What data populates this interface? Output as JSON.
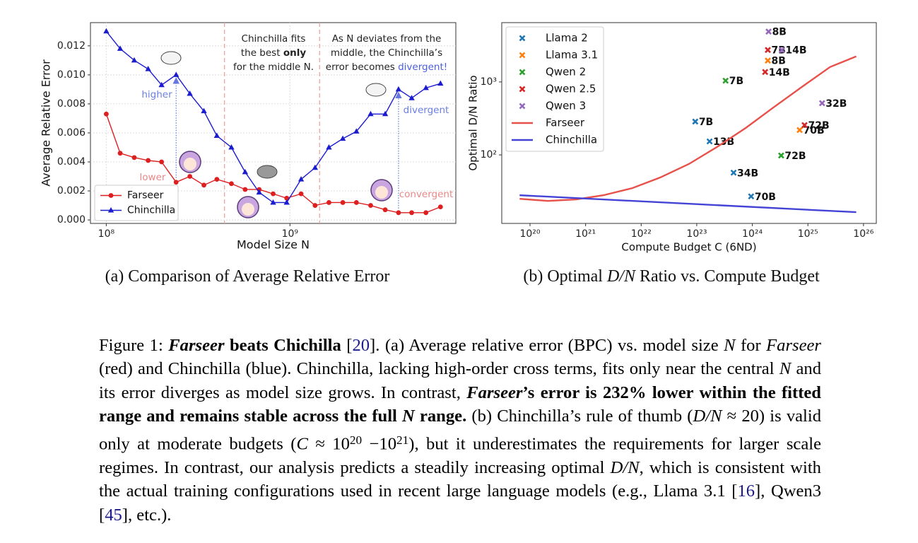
{
  "chart_data": [
    {
      "type": "line",
      "x_label": "Model Size N",
      "y_label": "Average Relative Error",
      "subcaption": [
        {
          "text": "(a) Comparison of Average Relative Error",
          "style": "n"
        }
      ],
      "x": [
        100000000,
        119000000,
        142000000,
        169000000,
        200000000,
        240000000,
        285000000,
        340000000,
        400000000,
        480000000,
        570000000,
        680000000,
        810000000,
        960000000,
        1150000000,
        1370000000,
        1630000000,
        1940000000,
        2300000000,
        2750000000,
        3300000000,
        3900000000,
        4600000000,
        5500000000,
        6600000000
      ],
      "series": [
        {
          "name": "Farseer",
          "color": "#dd1f1f",
          "marker": "o",
          "values": [
            0.0073,
            0.0046,
            0.0043,
            0.0041,
            0.004,
            0.0026,
            0.003,
            0.0024,
            0.0028,
            0.0025,
            0.0021,
            0.0021,
            0.0018,
            0.0015,
            0.0018,
            0.001,
            0.0012,
            0.0012,
            0.0012,
            0.001,
            0.0007,
            0.0005,
            0.0005,
            0.0005,
            0.0009
          ]
        },
        {
          "name": "Chinchilla",
          "color": "#1c1ccf",
          "marker": "^",
          "values": [
            0.013,
            0.0118,
            0.011,
            0.0104,
            0.0093,
            0.01,
            0.0087,
            0.0075,
            0.0058,
            0.005,
            0.0033,
            0.0019,
            0.0012,
            0.0012,
            0.0028,
            0.0036,
            0.005,
            0.0056,
            0.0061,
            0.0073,
            0.0073,
            0.009,
            0.0084,
            0.0091,
            0.0094
          ]
        }
      ],
      "xlim": [
        82000000,
        8000000000
      ],
      "xlog": true,
      "ylim": [
        -0.00024,
        0.0136
      ],
      "xticks": [
        {
          "value": 100000000,
          "label": "10⁸"
        },
        {
          "value": 1000000000,
          "label": "10⁹"
        }
      ],
      "yticks": [
        {
          "value": 0,
          "label": "0.000"
        },
        {
          "value": 0.002,
          "label": "0.002"
        },
        {
          "value": 0.004,
          "label": "0.004"
        },
        {
          "value": 0.006,
          "label": "0.006"
        },
        {
          "value": 0.008,
          "label": "0.008"
        },
        {
          "value": 0.01,
          "label": "0.010"
        },
        {
          "value": 0.012,
          "label": "0.012"
        }
      ],
      "grid": true,
      "legend": "lower left",
      "vlines": [
        440000000,
        1450000000
      ],
      "middle_note": [
        "Chinchilla fits",
        "the best ",
        "only",
        "for the middle N."
      ],
      "right_note": [
        "As N deviates from the",
        "middle, the Chinchilla’s",
        "error becomes ",
        "divergent!"
      ],
      "annotations": [
        "higher",
        "lower",
        "divergent",
        "convergent"
      ]
    },
    {
      "type": "scatter",
      "x_label": "Compute Budget C (6ND)",
      "y_label": "Optimal D/N Ratio",
      "subcaption": [
        {
          "text": "(b) Optimal ",
          "style": "n"
        },
        {
          "text": "D/N",
          "style": "m"
        },
        {
          "text": " Ratio vs. Compute Budget",
          "style": "n"
        }
      ],
      "series": [
        {
          "name": "Llama 2",
          "color": "#1f77b4",
          "marker": "x",
          "x": [
            9.4e+22,
            1.7e+23,
            4.6e+23,
            9.5e+23
          ],
          "values": [
            286,
            153,
            57,
            27
          ],
          "labels": [
            "7B",
            "13B",
            "34B",
            "70B"
          ]
        },
        {
          "name": "Llama 3.1",
          "color": "#ff7f0e",
          "marker": "x",
          "x": [
            1.9e+24,
            7.1e+24
          ],
          "values": [
            1960,
            219
          ],
          "labels": [
            "8B",
            "70B"
          ]
        },
        {
          "name": "Qwen 2",
          "color": "#2ca02c",
          "marker": "x",
          "x": [
            3.3e+23,
            3.3e+24
          ],
          "values": [
            1040,
            98
          ],
          "labels": [
            "7B",
            "72B"
          ]
        },
        {
          "name": "Qwen 2.5",
          "color": "#d62728",
          "marker": "x",
          "x": [
            1.9e+24,
            1.7e+24,
            8.7e+24
          ],
          "values": [
            2740,
            1370,
            256
          ],
          "labels": [
            "7B",
            "14B",
            "72B"
          ]
        },
        {
          "name": "Qwen 3",
          "color": "#9467bd",
          "marker": "x",
          "x": [
            1.96e+24,
            3.4e+24,
            1.8e+25
          ],
          "values": [
            4900,
            2740,
            511
          ],
          "labels": [
            "8B",
            "14B",
            "32B"
          ]
        },
        {
          "name": "Farseer",
          "color": "#e8504a",
          "marker": "line",
          "x": [
            6.5e+19,
            2.1e+20,
            6.7e+20,
            2.1e+21,
            6.9e+21,
            2.2e+22,
            7.2e+22,
            2.3e+23,
            7.6e+23,
            2.4e+24,
            7.8e+24,
            2.5e+25,
            7.4e+25
          ],
          "values": [
            25.0,
            23.4,
            24.5,
            28,
            35,
            49,
            75,
            128,
            234,
            447,
            855,
            1600,
            2240
          ]
        },
        {
          "name": "Chinchilla",
          "color": "#4343d6",
          "marker": "line",
          "x": [
            6.5e+19,
            7.4e+25
          ],
          "values": [
            28,
            16.4
          ]
        }
      ],
      "xlim": [
        3.1e+19,
        1.7e+26
      ],
      "xlog": true,
      "ylim": [
        11.5,
        6500
      ],
      "ylog": true,
      "xticks": [
        {
          "value": 1e+20,
          "label": "10²⁰"
        },
        {
          "value": 1e+21,
          "label": "10²¹"
        },
        {
          "value": 1e+22,
          "label": "10²²"
        },
        {
          "value": 1e+23,
          "label": "10²³"
        },
        {
          "value": 1e+24,
          "label": "10²⁴"
        },
        {
          "value": 1e+25,
          "label": "10²⁵"
        },
        {
          "value": 1e+26,
          "label": "10²⁶"
        }
      ],
      "yticks": [
        {
          "value": 100,
          "label": "10²"
        },
        {
          "value": 1000,
          "label": "10³"
        }
      ],
      "grid": false,
      "legend": "upper left"
    }
  ],
  "caption": [
    {
      "text": "Figure 1: ",
      "style": "n"
    },
    {
      "text": "Farseer",
      "style": "bi"
    },
    {
      "text": " beats Chichilla",
      "style": "b"
    },
    {
      "text": " [",
      "style": "n"
    },
    {
      "text": "20",
      "style": "cite"
    },
    {
      "text": "].  (a) Average relative error (BPC) vs. model size ",
      "style": "n"
    },
    {
      "text": "N",
      "style": "m"
    },
    {
      "text": " for ",
      "style": "n"
    },
    {
      "text": "Farseer",
      "style": "i"
    },
    {
      "text": " (red) and Chinchilla (blue). Chinchilla, lacking high-order cross terms, fits only near the central ",
      "style": "n"
    },
    {
      "text": "N",
      "style": "m"
    },
    {
      "text": " and its error diverges as model size grows. In contrast, ",
      "style": "n"
    },
    {
      "text": "Farseer",
      "style": "bi"
    },
    {
      "text": "’s error is 232% lower within the fitted range and remains stable across the full ",
      "style": "b"
    },
    {
      "text": "N",
      "style": "bi"
    },
    {
      "text": " range.",
      "style": "b"
    },
    {
      "text": "  (b) Chinchilla’s rule of thumb (",
      "style": "n"
    },
    {
      "text": "D/N",
      "style": "m"
    },
    {
      "text": " ≈ 20) is valid only at moderate budgets (",
      "style": "n"
    },
    {
      "text": "C",
      "style": "m"
    },
    {
      "text": " ≈ 10",
      "style": "n"
    },
    {
      "text": "20",
      "style": "sup"
    },
    {
      "text": " −10",
      "style": "n"
    },
    {
      "text": "21",
      "style": "sup"
    },
    {
      "text": "), but it underestimates the requirements for larger scale regimes. In contrast, our analysis predicts a steadily increasing optimal ",
      "style": "n"
    },
    {
      "text": "D/N",
      "style": "m"
    },
    {
      "text": ", which is consistent with the actual training configurations used in recent large language models (e.g., Llama 3.1 [",
      "style": "n"
    },
    {
      "text": "16",
      "style": "cite"
    },
    {
      "text": "], Qwen3 [",
      "style": "n"
    },
    {
      "text": "45",
      "style": "cite"
    },
    {
      "text": "], etc.).",
      "style": "n"
    }
  ]
}
